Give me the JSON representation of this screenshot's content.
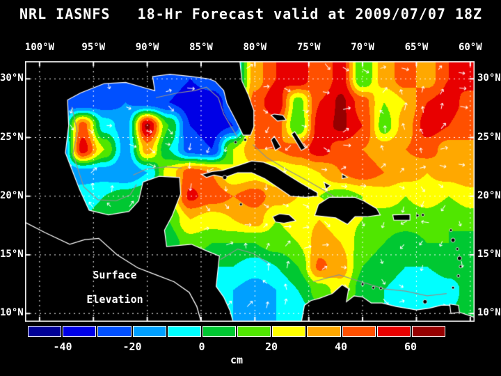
{
  "title": "NRL IASNFS   18-Hr Forecast valid at 2009/07/07 18Z",
  "map_label": {
    "line1": "Surface",
    "line2": "Elevation"
  },
  "axes": {
    "lon_labels": [
      "100°W",
      "95°W",
      "90°W",
      "85°W",
      "80°W",
      "75°W",
      "70°W",
      "65°W",
      "60°W"
    ],
    "lat_labels": [
      "30°N",
      "25°N",
      "20°N",
      "15°N",
      "10°N"
    ]
  },
  "colorbar": {
    "unit": "cm",
    "tick_labels": [
      "-40",
      "-20",
      "0",
      "20",
      "40",
      "60"
    ],
    "bin_edges": [
      -50,
      -40,
      -30,
      -20,
      -10,
      0,
      10,
      20,
      30,
      40,
      50,
      60,
      70
    ],
    "colors": [
      "#000096",
      "#0000E6",
      "#0050FF",
      "#00A0FF",
      "#00FFFF",
      "#00C832",
      "#50E600",
      "#FFFF00",
      "#FFA800",
      "#FF5000",
      "#E80000",
      "#960000"
    ]
  },
  "overlay": {
    "land_color": "#000000",
    "coastline_color": "#ffffff",
    "isobath_color": "#909090",
    "grid_color": "#ffffff",
    "vector_color": "#ffffff"
  },
  "chart_data": {
    "type": "heatmap",
    "title": "NRL IASNFS 18-Hr Forecast valid at 2009/07/07 18Z",
    "quantity": "Surface Elevation",
    "units": "cm",
    "lon_ticks_deg": [
      100,
      95,
      90,
      85,
      80,
      75,
      70,
      65,
      60
    ],
    "lat_ticks_deg": [
      30,
      25,
      20,
      15,
      10
    ],
    "lon_range_w": [
      100,
      60
    ],
    "lat_range_n": [
      10,
      30
    ],
    "grid": {
      "lon_w": [
        100,
        98,
        96,
        94,
        92,
        90,
        88,
        86,
        84,
        82,
        80,
        78,
        76,
        74,
        72,
        70,
        68,
        66,
        64,
        62,
        60
      ],
      "lat_n": [
        30,
        28,
        26,
        24,
        22,
        20,
        18,
        16,
        14,
        12,
        10
      ],
      "values_cm": [
        [
          -20,
          -20,
          -20,
          -20,
          -20,
          -22,
          -25,
          -30,
          -25,
          -15,
          35,
          50,
          58,
          40,
          55,
          10,
          35,
          45,
          35,
          50,
          55
        ],
        [
          -20,
          -25,
          -30,
          -25,
          -20,
          -25,
          -30,
          -35,
          -35,
          -25,
          45,
          58,
          15,
          50,
          62,
          45,
          20,
          30,
          50,
          55,
          45
        ],
        [
          -20,
          -20,
          45,
          -5,
          -15,
          62,
          10,
          -30,
          -35,
          -30,
          40,
          45,
          10,
          55,
          62,
          50,
          15,
          35,
          55,
          50,
          40
        ],
        [
          -20,
          -25,
          55,
          20,
          -15,
          35,
          0,
          -25,
          -30,
          20,
          40,
          40,
          45,
          55,
          45,
          40,
          35,
          40,
          45,
          35,
          40
        ],
        [
          -15,
          -20,
          -15,
          -15,
          -20,
          -10,
          25,
          45,
          40,
          20,
          25,
          20,
          25,
          30,
          40,
          45,
          40,
          35,
          30,
          35,
          40
        ],
        [
          -10,
          -10,
          -5,
          0,
          5,
          10,
          20,
          52,
          45,
          40,
          45,
          35,
          30,
          20,
          15,
          20,
          25,
          20,
          25,
          20,
          25
        ],
        [
          0,
          0,
          0,
          5,
          5,
          8,
          10,
          30,
          25,
          30,
          35,
          20,
          25,
          30,
          25,
          20,
          15,
          15,
          15,
          10,
          15
        ],
        [
          5,
          5,
          5,
          5,
          5,
          5,
          5,
          15,
          10,
          10,
          10,
          15,
          20,
          35,
          30,
          15,
          10,
          5,
          10,
          10,
          5
        ],
        [
          10,
          10,
          10,
          10,
          10,
          5,
          0,
          5,
          0,
          0,
          -5,
          0,
          10,
          42,
          35,
          10,
          5,
          0,
          0,
          5,
          10
        ],
        [
          10,
          10,
          10,
          10,
          10,
          5,
          0,
          0,
          -5,
          -10,
          -15,
          -10,
          0,
          15,
          25,
          5,
          0,
          -5,
          -10,
          -5,
          5
        ],
        [
          10,
          10,
          10,
          10,
          10,
          5,
          0,
          0,
          -5,
          -10,
          -10,
          -10,
          -5,
          5,
          10,
          5,
          0,
          -5,
          -5,
          0,
          5
        ]
      ]
    }
  },
  "geo": {
    "mainland": [
      [
        101.4,
        31.5
      ],
      [
        101.4,
        9.2
      ],
      [
        82.0,
        9.2
      ],
      [
        82.3,
        10.2
      ],
      [
        82.9,
        11.4
      ],
      [
        83.6,
        12.3
      ],
      [
        83.3,
        14.9
      ],
      [
        84.4,
        15.3
      ],
      [
        85.9,
        15.9
      ],
      [
        88.2,
        15.7
      ],
      [
        88.4,
        17.1
      ],
      [
        87.7,
        18.3
      ],
      [
        86.9,
        20.2
      ],
      [
        87.0,
        21.6
      ],
      [
        88.9,
        21.7
      ],
      [
        90.4,
        21.2
      ],
      [
        90.8,
        19.6
      ],
      [
        91.7,
        18.7
      ],
      [
        93.6,
        18.4
      ],
      [
        95.4,
        18.8
      ],
      [
        96.3,
        20.6
      ],
      [
        97.6,
        23.7
      ],
      [
        97.3,
        26.0
      ],
      [
        97.4,
        28.2
      ],
      [
        96.2,
        28.8
      ],
      [
        94.0,
        29.6
      ],
      [
        92.0,
        29.7
      ],
      [
        90.1,
        29.2
      ],
      [
        89.3,
        29.0
      ],
      [
        89.5,
        30.2
      ],
      [
        87.9,
        30.4
      ],
      [
        85.9,
        30.2
      ],
      [
        84.3,
        30.0
      ],
      [
        83.7,
        29.8
      ],
      [
        82.9,
        29.0
      ],
      [
        82.6,
        27.9
      ],
      [
        81.8,
        26.5
      ],
      [
        81.1,
        25.2
      ],
      [
        80.4,
        25.2
      ],
      [
        80.1,
        25.9
      ],
      [
        80.1,
        27.3
      ],
      [
        80.6,
        28.6
      ],
      [
        81.2,
        29.8
      ],
      [
        81.4,
        31.5
      ]
    ],
    "cuba": [
      [
        84.95,
        21.85
      ],
      [
        84.0,
        22.1
      ],
      [
        83.0,
        22.2
      ],
      [
        81.6,
        22.6
      ],
      [
        80.3,
        23.0
      ],
      [
        79.2,
        22.9
      ],
      [
        78.1,
        22.5
      ],
      [
        77.1,
        21.9
      ],
      [
        75.7,
        21.1
      ],
      [
        74.2,
        20.3
      ],
      [
        74.2,
        20.0
      ],
      [
        75.3,
        19.9
      ],
      [
        76.7,
        20.0
      ],
      [
        77.8,
        20.7
      ],
      [
        79.1,
        21.5
      ],
      [
        80.3,
        22.0
      ],
      [
        81.6,
        22.0
      ],
      [
        82.8,
        21.6
      ],
      [
        83.8,
        21.8
      ],
      [
        84.5,
        21.6
      ]
    ],
    "hispaniola": [
      [
        74.45,
        18.35
      ],
      [
        74.1,
        19.3
      ],
      [
        73.1,
        19.9
      ],
      [
        71.8,
        19.9
      ],
      [
        70.7,
        19.9
      ],
      [
        69.9,
        19.6
      ],
      [
        68.7,
        18.95
      ],
      [
        68.35,
        18.4
      ],
      [
        69.6,
        18.25
      ],
      [
        70.7,
        18.25
      ],
      [
        71.4,
        17.6
      ],
      [
        72.5,
        18.15
      ],
      [
        73.5,
        18.25
      ]
    ],
    "jamaica": [
      [
        78.35,
        18.25
      ],
      [
        77.7,
        18.5
      ],
      [
        76.8,
        18.4
      ],
      [
        76.2,
        17.9
      ],
      [
        77.3,
        17.7
      ],
      [
        78.1,
        17.8
      ]
    ],
    "puerto_rico": [
      [
        67.2,
        18.4
      ],
      [
        65.6,
        18.45
      ],
      [
        65.6,
        17.95
      ],
      [
        67.1,
        17.95
      ]
    ],
    "south_america": [
      [
        75.7,
        9.2
      ],
      [
        75.4,
        10.7
      ],
      [
        74.8,
        11.1
      ],
      [
        74.0,
        11.3
      ],
      [
        72.8,
        11.7
      ],
      [
        71.9,
        12.45
      ],
      [
        71.3,
        12.1
      ],
      [
        71.5,
        11.0
      ],
      [
        70.8,
        11.5
      ],
      [
        70.0,
        11.4
      ],
      [
        69.2,
        10.9
      ],
      [
        68.2,
        10.9
      ],
      [
        66.9,
        10.6
      ],
      [
        65.0,
        10.3
      ],
      [
        63.8,
        10.45
      ],
      [
        62.7,
        10.7
      ],
      [
        62.0,
        10.7
      ],
      [
        61.0,
        10.1
      ],
      [
        60.0,
        9.8
      ],
      [
        59.4,
        9.6
      ],
      [
        59.4,
        9.2
      ]
    ],
    "trinidad": [
      [
        61.9,
        10.8
      ],
      [
        61.1,
        10.7
      ],
      [
        61.0,
        10.1
      ],
      [
        61.8,
        10.0
      ]
    ],
    "bahamas": [
      [
        [
          78.5,
          26.9
        ],
        [
          77.9,
          26.4
        ],
        [
          77.1,
          26.5
        ],
        [
          77.4,
          26.9
        ],
        [
          78.2,
          27.0
        ]
      ],
      [
        [
          78.2,
          25.1
        ],
        [
          77.6,
          24.2
        ],
        [
          78.1,
          23.9
        ],
        [
          78.5,
          24.8
        ]
      ],
      [
        [
          76.3,
          25.5
        ],
        [
          75.3,
          24.1
        ],
        [
          75.7,
          23.9
        ],
        [
          76.6,
          25.3
        ]
      ],
      [
        [
          73.6,
          21.2
        ],
        [
          73.0,
          20.9
        ],
        [
          73.4,
          20.6
        ]
      ],
      [
        [
          71.9,
          21.9
        ],
        [
          71.4,
          21.6
        ],
        [
          71.9,
          21.5
        ]
      ]
    ],
    "islets": [
      [
        82.8,
        21.6,
        3
      ],
      [
        81.3,
        19.3,
        2
      ],
      [
        64.9,
        18.35,
        2
      ],
      [
        64.4,
        18.4,
        2
      ],
      [
        61.8,
        17.1,
        2
      ],
      [
        61.6,
        16.25,
        3
      ],
      [
        61.2,
        15.5,
        2
      ],
      [
        61.0,
        14.7,
        3
      ],
      [
        60.9,
        14.0,
        2
      ],
      [
        61.1,
        13.2,
        2
      ],
      [
        61.6,
        12.2,
        2
      ],
      [
        64.2,
        11.0,
        3
      ],
      [
        69.0,
        12.2,
        2
      ],
      [
        68.3,
        12.15,
        2
      ],
      [
        70.0,
        12.5,
        2
      ],
      [
        81.8,
        24.6,
        2
      ],
      [
        80.9,
        24.8,
        2
      ]
    ],
    "pacific_coast": [
      [
        101.4,
        17.8
      ],
      [
        99.5,
        16.9
      ],
      [
        97.2,
        15.9
      ],
      [
        95.8,
        16.3
      ],
      [
        94.5,
        16.4
      ],
      [
        92.8,
        15.0
      ],
      [
        90.9,
        13.9
      ],
      [
        89.2,
        13.3
      ],
      [
        87.5,
        12.7
      ],
      [
        86.1,
        11.8
      ],
      [
        85.4,
        10.6
      ],
      [
        85.0,
        9.3
      ]
    ],
    "isobaths": [
      [
        [
          97.0,
          27.6
        ],
        [
          96.5,
          25.5
        ],
        [
          96.9,
          23.6
        ],
        [
          95.9,
          20.8
        ],
        [
          94.6,
          19.7
        ],
        [
          92.9,
          19.6
        ],
        [
          91.6,
          20.1
        ],
        [
          91.0,
          21.0
        ]
      ],
      [
        [
          89.2,
          28.4
        ],
        [
          87.2,
          28.8
        ],
        [
          85.6,
          29.0
        ],
        [
          84.5,
          29.3
        ],
        [
          83.4,
          28.4
        ],
        [
          82.9,
          27.0
        ],
        [
          82.2,
          25.9
        ],
        [
          81.6,
          25.0
        ]
      ],
      [
        [
          86.8,
          22.4
        ],
        [
          88.3,
          22.5
        ],
        [
          90.1,
          22.3
        ],
        [
          91.3,
          21.8
        ]
      ],
      [
        [
          80.2,
          24.4
        ],
        [
          78.9,
          23.3
        ],
        [
          76.9,
          22.2
        ],
        [
          75.1,
          21.3
        ],
        [
          73.4,
          20.4
        ],
        [
          72.0,
          19.6
        ]
      ],
      [
        [
          74.6,
          12.7
        ],
        [
          72.2,
          13.3
        ],
        [
          70.1,
          12.7
        ],
        [
          68.0,
          12.1
        ],
        [
          66.0,
          11.9
        ],
        [
          64.0,
          11.5
        ],
        [
          62.2,
          11.7
        ]
      ],
      [
        [
          83.2,
          14.6
        ],
        [
          81.6,
          15.5
        ],
        [
          80.1,
          15.1
        ],
        [
          78.8,
          14.3
        ]
      ]
    ]
  }
}
